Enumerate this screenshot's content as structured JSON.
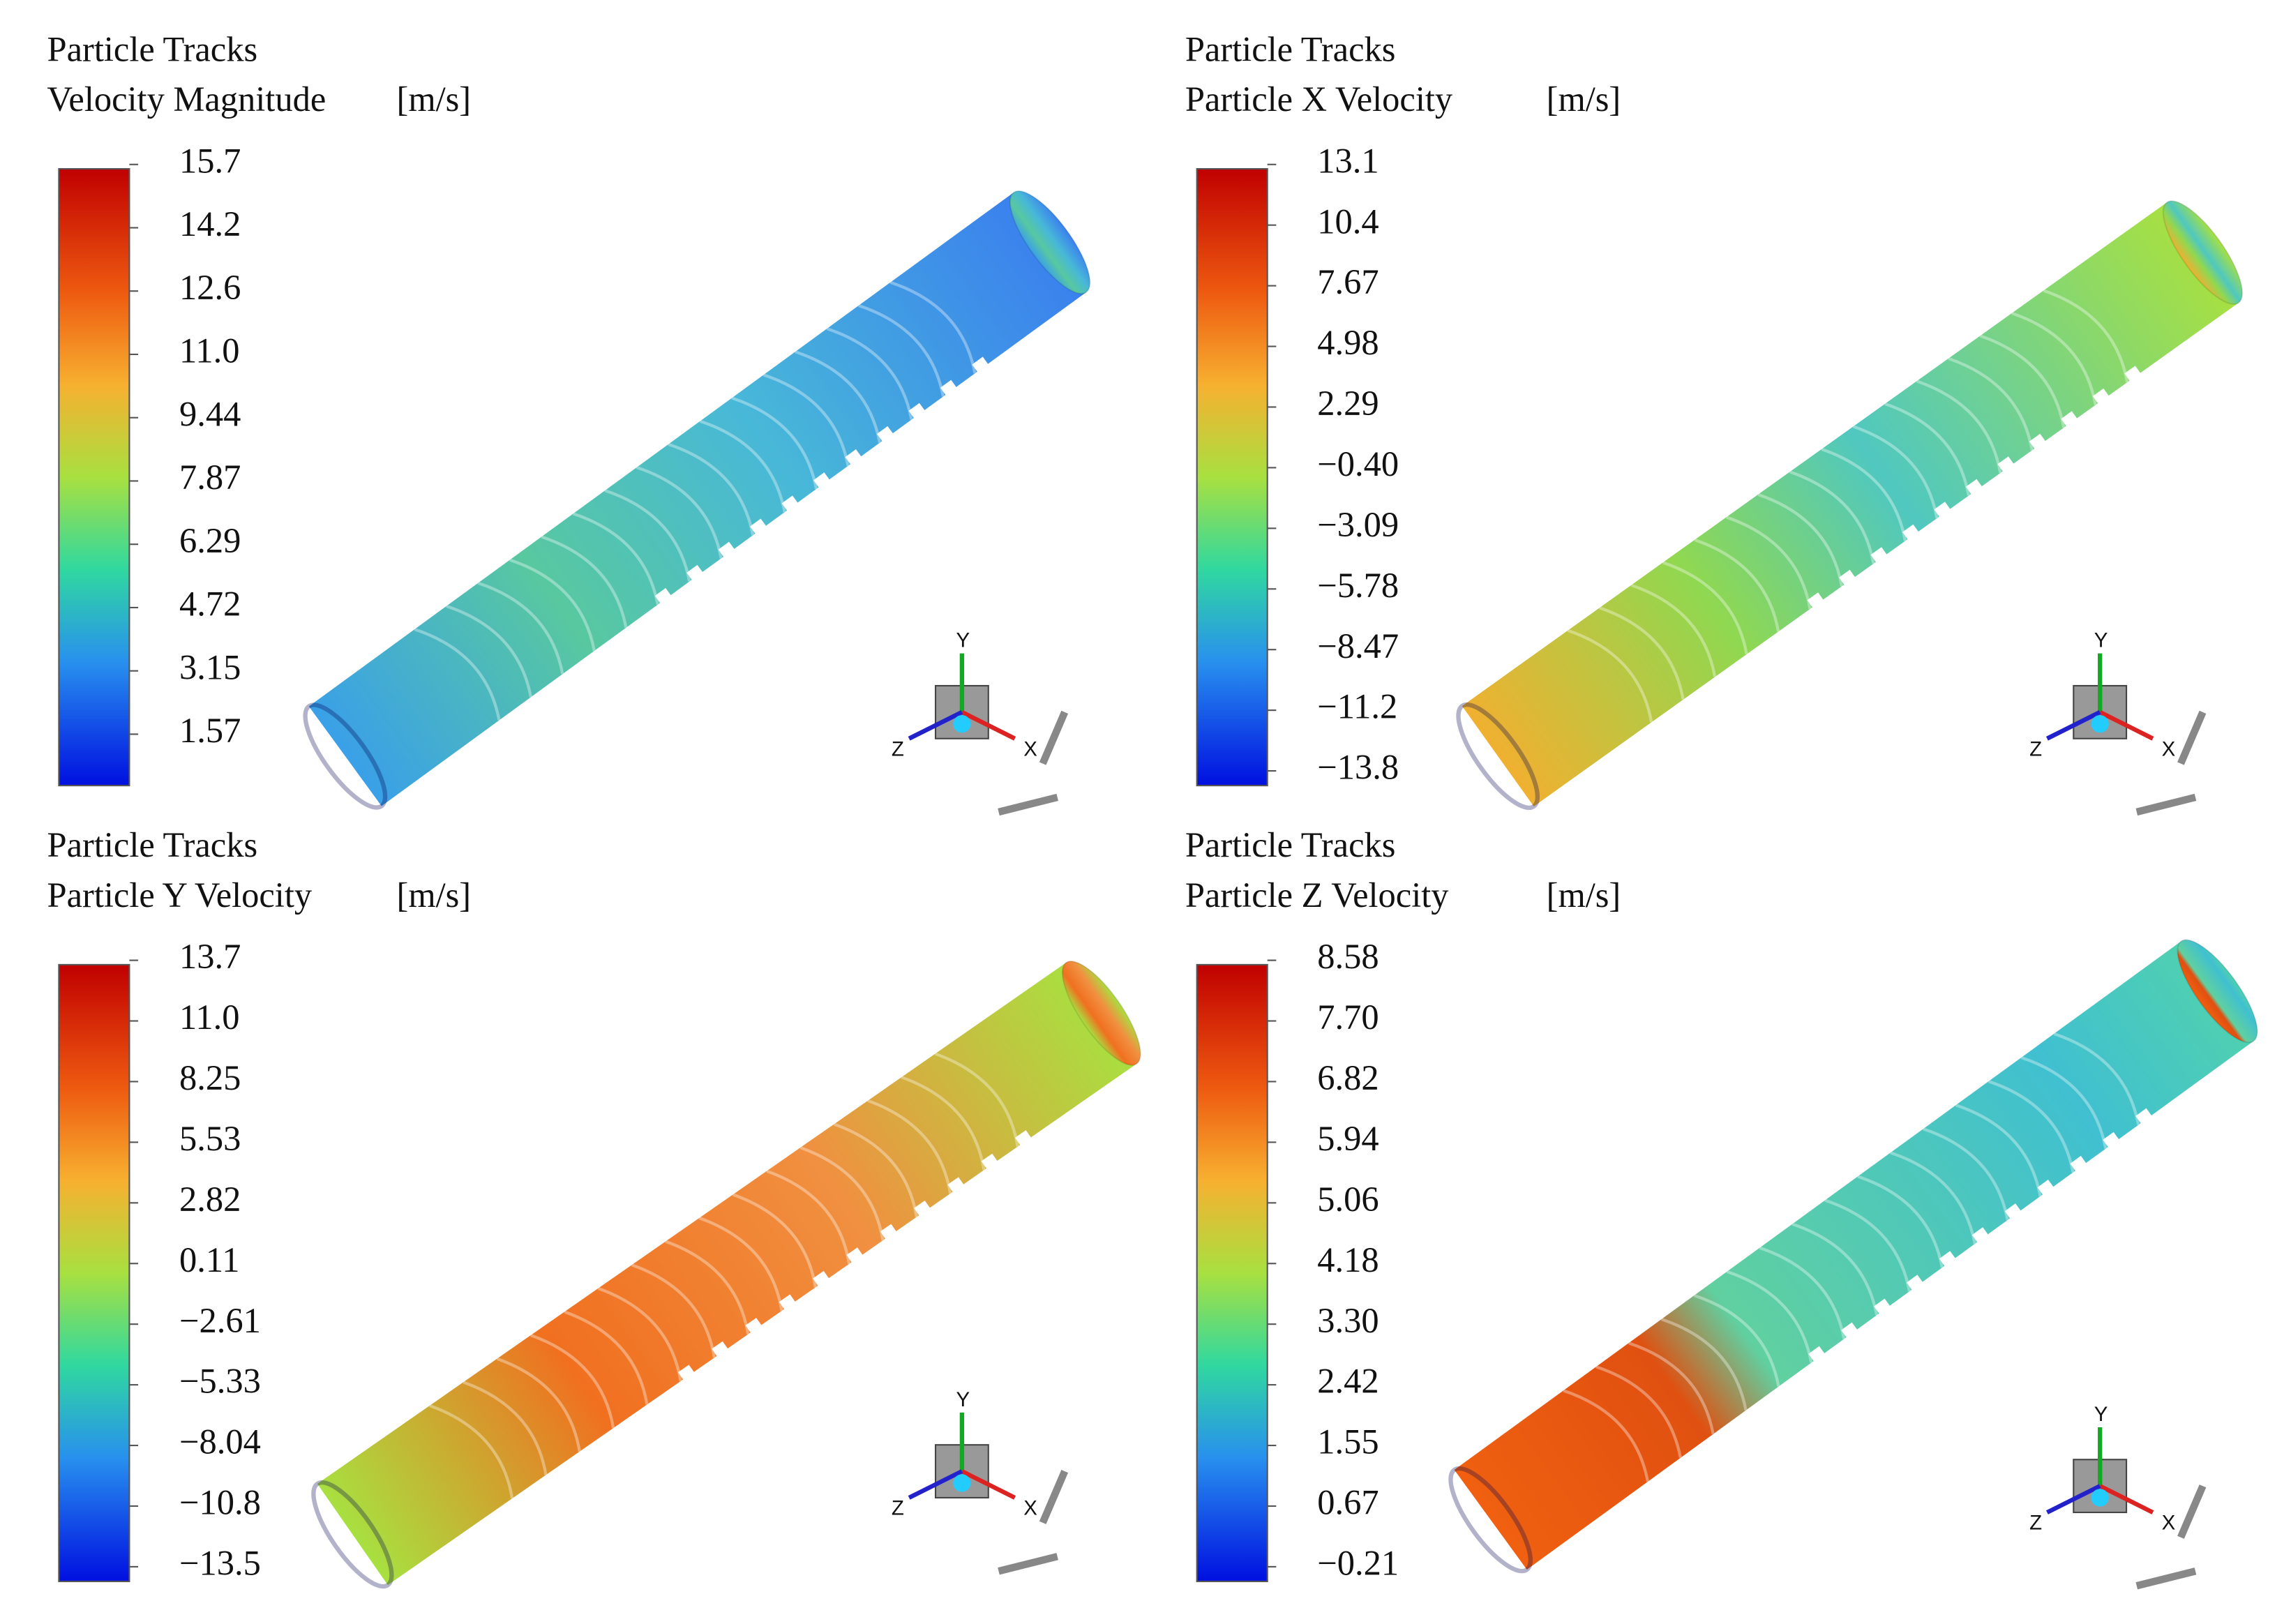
{
  "axes": [
    "X",
    "Y",
    "Z"
  ],
  "panels": [
    {
      "title": "Particle Tracks",
      "variable": "Velocity Magnitude",
      "unit": "[m/s]",
      "labels": [
        "15.7",
        "14.2",
        "12.6",
        "11.0",
        "9.44",
        "7.87",
        "6.29",
        "4.72",
        "3.15",
        "1.57"
      ]
    },
    {
      "title": "Particle Tracks",
      "variable": "Particle X Velocity",
      "unit": "[m/s]",
      "labels": [
        "13.1",
        "10.4",
        "7.67",
        "4.98",
        "2.29",
        "−0.40",
        "−3.09",
        "−5.78",
        "−8.47",
        "−11.2",
        "−13.8"
      ]
    },
    {
      "title": "Particle Tracks",
      "variable": "Particle Y Velocity",
      "unit": "[m/s]",
      "labels": [
        "13.7",
        "11.0",
        "8.25",
        "5.53",
        "2.82",
        "0.11",
        "−2.61",
        "−5.33",
        "−8.04",
        "−10.8",
        "−13.5"
      ]
    },
    {
      "title": "Particle Tracks",
      "variable": "Particle Z Velocity",
      "unit": "[m/s]",
      "labels": [
        "8.58",
        "7.70",
        "6.82",
        "5.94",
        "5.06",
        "4.18",
        "3.30",
        "2.42",
        "1.55",
        "0.67",
        "−0.21"
      ]
    }
  ]
}
